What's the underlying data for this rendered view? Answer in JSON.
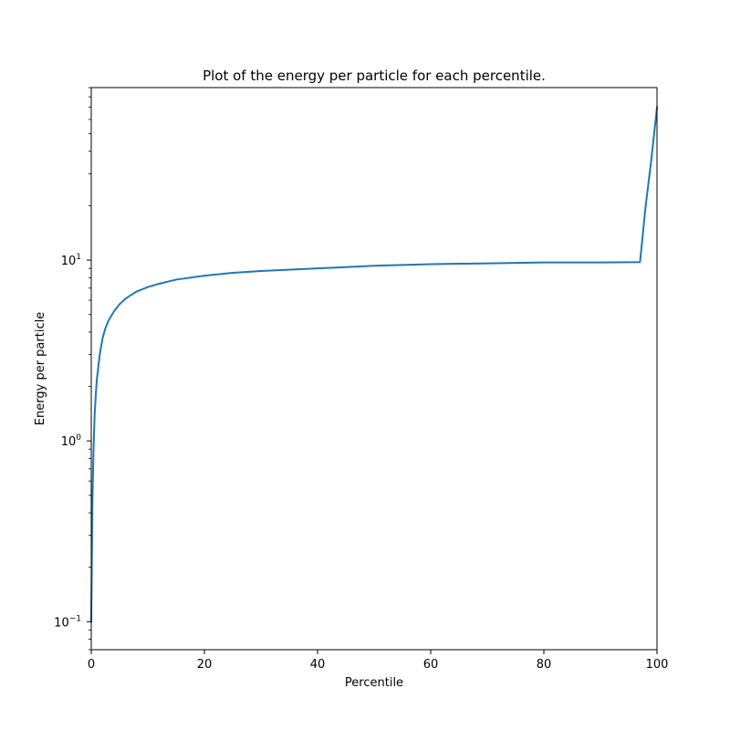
{
  "chart_data": {
    "type": "line",
    "title": "Plot of the energy per particle for each percentile.",
    "xlabel": "Percentile",
    "ylabel": "Energy per particle",
    "xlim": [
      0,
      100
    ],
    "ylim": [
      0.07,
      90
    ],
    "yscale": "log",
    "grid": false,
    "legend": "none",
    "x_ticks": [
      {
        "value": 0,
        "label": "0"
      },
      {
        "value": 20,
        "label": "20"
      },
      {
        "value": 40,
        "label": "40"
      },
      {
        "value": 60,
        "label": "60"
      },
      {
        "value": 80,
        "label": "80"
      },
      {
        "value": 100,
        "label": "100"
      }
    ],
    "y_ticks": [
      {
        "value": 0.1,
        "base": "10",
        "exp": "−1"
      },
      {
        "value": 1,
        "base": "10",
        "exp": "0"
      },
      {
        "value": 10,
        "base": "10",
        "exp": "1"
      }
    ],
    "series": [
      {
        "color": "#1f77b4",
        "x": [
          0,
          0.2,
          0.4,
          0.6,
          0.8,
          1,
          1.5,
          2,
          2.5,
          3,
          4,
          5,
          6,
          7,
          8,
          10,
          12,
          15,
          20,
          25,
          30,
          40,
          50,
          60,
          70,
          80,
          90,
          97,
          98,
          99,
          100
        ],
        "y": [
          0.1,
          0.45,
          0.9,
          1.4,
          1.8,
          2.2,
          3.0,
          3.7,
          4.2,
          4.6,
          5.2,
          5.7,
          6.1,
          6.4,
          6.7,
          7.1,
          7.4,
          7.8,
          8.2,
          8.5,
          8.7,
          9.0,
          9.3,
          9.5,
          9.6,
          9.7,
          9.7,
          9.75,
          20,
          36,
          70
        ]
      }
    ]
  }
}
